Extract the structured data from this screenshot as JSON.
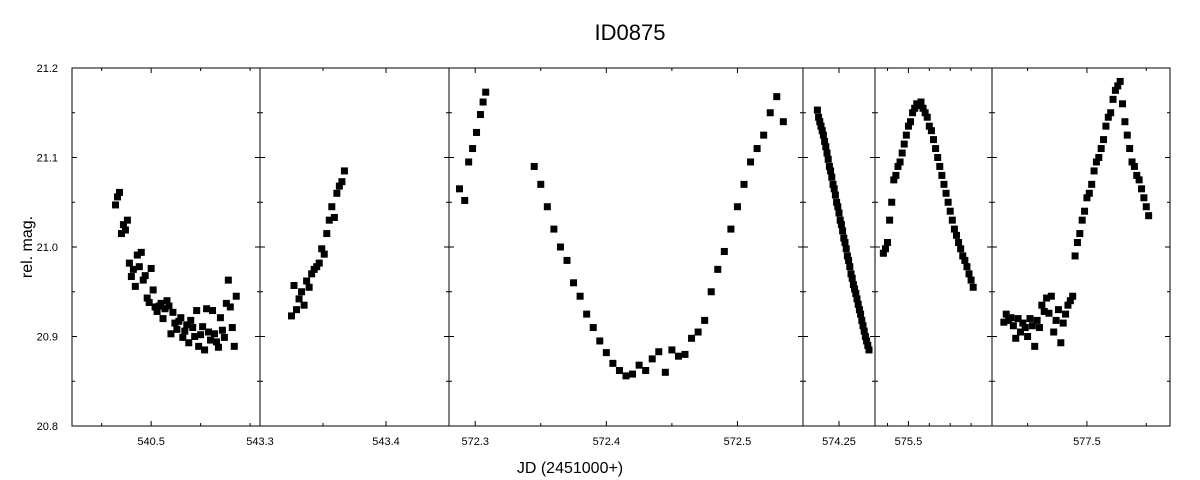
{
  "chart_data": {
    "type": "scatter",
    "title": "ID0875",
    "xlabel": "JD (2451000+)",
    "ylabel": "rel. mag.",
    "ylim": [
      21.2,
      20.8
    ],
    "y_ticks": [
      "20.8",
      "20.9",
      "21.0",
      "21.1",
      "21.2"
    ],
    "y_tick_values": [
      20.8,
      20.9,
      21.0,
      21.1,
      21.2
    ],
    "marker_color": "#000000",
    "grid": false,
    "legend": "none",
    "panels": [
      {
        "xlim": [
          540.42,
          540.61
        ],
        "x_ticks": [
          540.5
        ],
        "x_tick_labels": [
          "540.5"
        ],
        "x": [
          540.464,
          540.466,
          540.468,
          540.47,
          540.472,
          540.474,
          540.476,
          540.478,
          540.48,
          540.482,
          540.484,
          540.486,
          540.488,
          540.49,
          540.492,
          540.494,
          540.496,
          540.498,
          540.5,
          540.502,
          540.504,
          540.506,
          540.508,
          540.51,
          540.512,
          540.514,
          540.516,
          540.518,
          540.52,
          540.522,
          540.524,
          540.526,
          540.528,
          540.53,
          540.532,
          540.534,
          540.536,
          540.538,
          540.54,
          540.542,
          540.544,
          540.546,
          540.548,
          540.55,
          540.552,
          540.554,
          540.556,
          540.558,
          540.56,
          540.562,
          540.564,
          540.566,
          540.568,
          540.57,
          540.572,
          540.574,
          540.576,
          540.578,
          540.58,
          540.582,
          540.584,
          540.586
        ],
        "y": [
          21.047,
          21.056,
          21.061,
          21.015,
          21.025,
          21.019,
          21.03,
          20.982,
          20.967,
          20.975,
          20.956,
          20.991,
          20.978,
          20.994,
          20.963,
          20.968,
          20.943,
          20.938,
          20.976,
          20.952,
          20.933,
          20.928,
          20.934,
          20.937,
          20.92,
          20.931,
          20.94,
          20.934,
          20.903,
          20.927,
          20.915,
          20.908,
          20.917,
          20.921,
          20.899,
          20.906,
          20.913,
          20.893,
          20.918,
          20.91,
          20.9,
          20.929,
          20.889,
          20.902,
          20.911,
          20.885,
          20.931,
          20.905,
          20.896,
          20.929,
          20.903,
          20.894,
          20.888,
          20.921,
          20.907,
          20.899,
          20.937,
          20.963,
          20.933,
          20.91,
          20.889,
          20.945
        ]
      },
      {
        "xlim": [
          543.3,
          543.45
        ],
        "x_ticks": [
          543.3,
          543.4
        ],
        "x_tick_labels": [
          "543.3",
          "543.4"
        ],
        "x": [
          543.325,
          543.327,
          543.329,
          543.331,
          543.333,
          543.335,
          543.337,
          543.339,
          543.341,
          543.343,
          543.345,
          543.347,
          543.349,
          543.351,
          543.353,
          543.355,
          543.357,
          543.359,
          543.361,
          543.363,
          543.365,
          543.367
        ],
        "y": [
          20.923,
          20.957,
          20.93,
          20.942,
          20.95,
          20.935,
          20.962,
          20.955,
          20.97,
          20.975,
          20.978,
          20.982,
          20.998,
          20.992,
          21.015,
          21.03,
          21.045,
          21.033,
          21.06,
          21.068,
          21.073,
          21.085
        ]
      },
      {
        "xlim": [
          572.28,
          572.55
        ],
        "x_ticks": [
          572.3,
          572.4,
          572.5
        ],
        "x_tick_labels": [
          "572.3",
          "572.4",
          "572.5"
        ],
        "x": [
          572.288,
          572.292,
          572.295,
          572.298,
          572.301,
          572.304,
          572.306,
          572.308,
          572.345,
          572.35,
          572.355,
          572.36,
          572.365,
          572.37,
          572.375,
          572.38,
          572.385,
          572.39,
          572.395,
          572.4,
          572.405,
          572.41,
          572.415,
          572.42,
          572.425,
          572.43,
          572.435,
          572.44,
          572.445,
          572.45,
          572.455,
          572.46,
          572.465,
          572.47,
          572.475,
          572.48,
          572.485,
          572.49,
          572.495,
          572.5,
          572.505,
          572.51,
          572.515,
          572.52,
          572.525,
          572.53,
          572.535
        ],
        "y": [
          21.065,
          21.052,
          21.095,
          21.11,
          21.128,
          21.148,
          21.162,
          21.173,
          21.09,
          21.07,
          21.045,
          21.02,
          21.0,
          20.985,
          20.96,
          20.945,
          20.925,
          20.91,
          20.895,
          20.882,
          20.87,
          20.862,
          20.856,
          20.858,
          20.868,
          20.862,
          20.875,
          20.883,
          20.86,
          20.885,
          20.878,
          20.88,
          20.898,
          20.905,
          20.918,
          20.95,
          20.975,
          20.995,
          21.02,
          21.045,
          21.07,
          21.095,
          21.11,
          21.125,
          21.15,
          21.168,
          21.14
        ]
      },
      {
        "xlim": [
          574.22,
          574.28
        ],
        "x_ticks": [
          574.25
        ],
        "x_tick_labels": [
          "574.25"
        ],
        "x": [
          574.232,
          574.233,
          574.234,
          574.235,
          574.236,
          574.237,
          574.238,
          574.239,
          574.24,
          574.241,
          574.242,
          574.243,
          574.244,
          574.245,
          574.246,
          574.247,
          574.248,
          574.249,
          574.25,
          574.251,
          574.252,
          574.253,
          574.254,
          574.255,
          574.256,
          574.257,
          574.258,
          574.259,
          574.26,
          574.261,
          574.262,
          574.263,
          574.264,
          574.265,
          574.266,
          574.267,
          574.268,
          574.269,
          574.27,
          574.271,
          574.272,
          574.273,
          574.274,
          574.275
        ],
        "y": [
          21.153,
          21.145,
          21.14,
          21.135,
          21.13,
          21.125,
          21.118,
          21.112,
          21.105,
          21.098,
          21.09,
          21.085,
          21.078,
          21.07,
          21.065,
          21.058,
          21.05,
          21.045,
          21.038,
          21.03,
          21.025,
          21.018,
          21.01,
          21.005,
          20.998,
          20.99,
          20.985,
          20.978,
          20.97,
          20.965,
          20.958,
          20.953,
          20.948,
          20.942,
          20.936,
          20.93,
          20.925,
          20.918,
          20.912,
          20.906,
          20.9,
          20.895,
          20.89,
          20.885
        ]
      },
      {
        "xlim": [
          575.42,
          575.7
        ],
        "x_ticks": [
          575.5
        ],
        "x_tick_labels": [
          "575.5"
        ],
        "x": [
          575.44,
          575.445,
          575.45,
          575.455,
          575.46,
          575.465,
          575.47,
          575.475,
          575.48,
          575.485,
          575.49,
          575.495,
          575.5,
          575.505,
          575.51,
          575.515,
          575.52,
          575.525,
          575.53,
          575.535,
          575.54,
          575.545,
          575.55,
          575.555,
          575.56,
          575.565,
          575.57,
          575.575,
          575.58,
          575.585,
          575.59,
          575.595,
          575.6,
          575.605,
          575.61,
          575.615,
          575.62,
          575.625,
          575.63,
          575.635,
          575.64,
          575.645,
          575.65,
          575.655
        ],
        "y": [
          20.993,
          20.998,
          21.005,
          21.03,
          21.05,
          21.075,
          21.08,
          21.09,
          21.095,
          21.105,
          21.115,
          21.125,
          21.135,
          21.14,
          21.15,
          21.155,
          21.16,
          21.158,
          21.162,
          21.155,
          21.15,
          21.145,
          21.135,
          21.13,
          21.12,
          21.11,
          21.1,
          21.09,
          21.08,
          21.07,
          21.06,
          21.05,
          21.04,
          21.03,
          21.02,
          21.013,
          21.005,
          20.998,
          20.99,
          20.985,
          20.978,
          20.97,
          20.963,
          20.955
        ]
      },
      {
        "xlim": [
          577.42,
          577.57
        ],
        "x_ticks": [
          577.5
        ],
        "x_tick_labels": [
          "577.5"
        ],
        "x": [
          577.43,
          577.432,
          577.434,
          577.436,
          577.438,
          577.44,
          577.442,
          577.444,
          577.446,
          577.448,
          577.45,
          577.452,
          577.454,
          577.456,
          577.458,
          577.46,
          577.462,
          577.464,
          577.466,
          577.468,
          577.47,
          577.472,
          577.474,
          577.476,
          577.478,
          577.48,
          577.482,
          577.484,
          577.486,
          577.488,
          577.49,
          577.492,
          577.494,
          577.496,
          577.498,
          577.5,
          577.502,
          577.504,
          577.506,
          577.508,
          577.51,
          577.512,
          577.514,
          577.516,
          577.518,
          577.52,
          577.522,
          577.524,
          577.526,
          577.528,
          577.53,
          577.532,
          577.534,
          577.536,
          577.538,
          577.54,
          577.542,
          577.544,
          577.546,
          577.548,
          577.55,
          577.552
        ],
        "y": [
          20.916,
          20.925,
          20.918,
          20.921,
          20.912,
          20.898,
          20.92,
          20.905,
          20.915,
          20.91,
          20.9,
          20.92,
          20.912,
          20.889,
          20.918,
          20.91,
          20.935,
          20.928,
          20.943,
          20.926,
          20.945,
          20.905,
          20.918,
          20.93,
          20.893,
          20.915,
          20.925,
          20.935,
          20.94,
          20.945,
          20.99,
          21.005,
          21.015,
          21.03,
          21.04,
          21.055,
          21.06,
          21.07,
          21.085,
          21.095,
          21.1,
          21.11,
          21.12,
          21.135,
          21.145,
          21.15,
          21.165,
          21.175,
          21.18,
          21.185,
          21.16,
          21.14,
          21.125,
          21.11,
          21.095,
          21.09,
          21.08,
          21.075,
          21.065,
          21.055,
          21.045,
          21.035
        ]
      }
    ]
  }
}
